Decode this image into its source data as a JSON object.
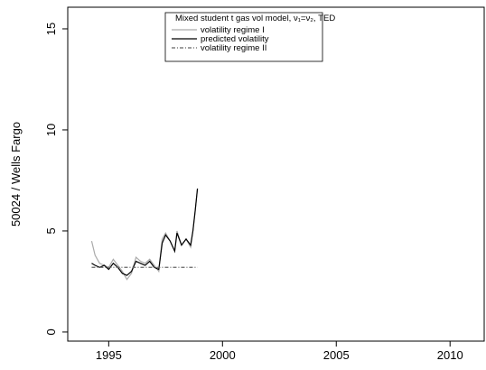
{
  "chart_data": {
    "type": "line",
    "y_label": "50024 / Wells Fargo",
    "legend_title": "Mixed student t gas vol model, ν₁=ν₂, TED",
    "x": [
      1994.25,
      1994.4,
      1994.6,
      1994.8,
      1995.0,
      1995.2,
      1995.4,
      1995.6,
      1995.8,
      1996.0,
      1996.2,
      1996.4,
      1996.6,
      1996.8,
      1997.0,
      1997.2,
      1997.35,
      1997.5,
      1997.7,
      1997.9,
      1998.0,
      1998.2,
      1998.4,
      1998.6,
      1998.7,
      1998.8,
      1998.9
    ],
    "series": [
      {
        "name": "volatility regime I",
        "color": "#aaaaaa",
        "dash": "none",
        "values": [
          4.5,
          3.8,
          3.4,
          3.3,
          3.2,
          3.6,
          3.3,
          3.0,
          2.6,
          2.9,
          3.7,
          3.5,
          3.4,
          3.6,
          3.3,
          3.0,
          4.6,
          4.9,
          4.5,
          4.0,
          5.0,
          4.3,
          4.6,
          4.2,
          5.0,
          6.0,
          7.1
        ]
      },
      {
        "name": "predicted volatility",
        "color": "#000000",
        "dash": "none",
        "values": [
          3.4,
          3.3,
          3.2,
          3.3,
          3.1,
          3.4,
          3.2,
          2.9,
          2.8,
          3.0,
          3.5,
          3.4,
          3.3,
          3.5,
          3.2,
          3.1,
          4.4,
          4.8,
          4.5,
          4.0,
          4.9,
          4.3,
          4.6,
          4.3,
          5.0,
          6.0,
          7.1
        ]
      },
      {
        "name": "volatility regime II",
        "color": "#666666",
        "dash": "4 2 1 2",
        "values": [
          3.2,
          3.2,
          3.2,
          3.2,
          3.2,
          3.2,
          3.2,
          3.2,
          3.2,
          3.2,
          3.2,
          3.2,
          3.2,
          3.2,
          3.2,
          3.2,
          3.2,
          3.2,
          3.2,
          3.2,
          3.2,
          3.2,
          3.2,
          3.2,
          3.2,
          3.2,
          3.2
        ]
      }
    ],
    "xlim": [
      1993.2,
      2011.5
    ],
    "xticks": [
      1995,
      2000,
      2005,
      2010
    ],
    "ylim": [
      -0.45,
      16.07
    ],
    "yticks": [
      0,
      5,
      10,
      15
    ]
  }
}
